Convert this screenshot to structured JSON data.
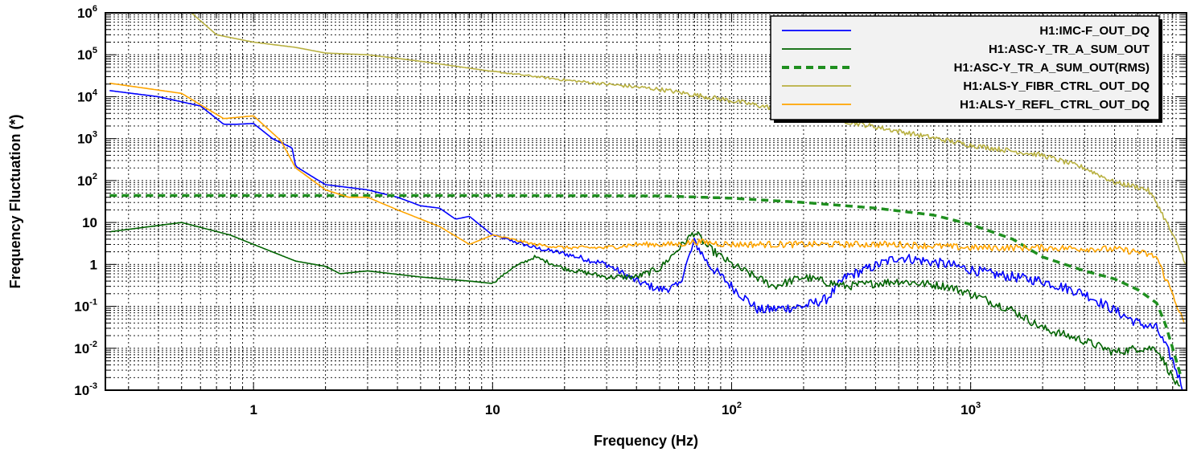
{
  "chart_data": {
    "type": "line",
    "xlabel": "Frequency (Hz)",
    "ylabel": "Frequency Fluctuation (*)",
    "xscale": "log",
    "yscale": "log",
    "xlim": [
      0.24,
      8000
    ],
    "ylim": [
      0.001,
      1000000
    ],
    "grid": true,
    "legend_position": "top-right",
    "x_ticks": [
      {
        "label": "1",
        "value": 1
      },
      {
        "label": "10",
        "value": 10
      },
      {
        "label": "10",
        "sup": "2",
        "value": 100
      },
      {
        "label": "10",
        "sup": "3",
        "value": 1000
      }
    ],
    "y_ticks": [
      {
        "label": "10",
        "sup": "-3",
        "value": 0.001
      },
      {
        "label": "10",
        "sup": "-2",
        "value": 0.01
      },
      {
        "label": "10",
        "sup": "-1",
        "value": 0.1
      },
      {
        "label": "1",
        "sup": "",
        "value": 1
      },
      {
        "label": "10",
        "sup": "",
        "value": 10
      },
      {
        "label": "10",
        "sup": "2",
        "value": 100
      },
      {
        "label": "10",
        "sup": "3",
        "value": 1000
      },
      {
        "label": "10",
        "sup": "4",
        "value": 10000
      },
      {
        "label": "10",
        "sup": "5",
        "value": 100000
      },
      {
        "label": "10",
        "sup": "6",
        "value": 1000000
      }
    ],
    "series": [
      {
        "name": "H1:IMC-F_OUT_DQ",
        "color": "#0000ff",
        "dash": "solid",
        "noise": 0.12,
        "points": [
          [
            0.25,
            14000
          ],
          [
            0.4,
            10000
          ],
          [
            0.6,
            6000
          ],
          [
            0.75,
            2200
          ],
          [
            0.85,
            2200
          ],
          [
            1.0,
            2300
          ],
          [
            1.2,
            1000
          ],
          [
            1.45,
            600
          ],
          [
            1.5,
            220
          ],
          [
            1.7,
            140
          ],
          [
            2.0,
            80
          ],
          [
            3.0,
            60
          ],
          [
            4.0,
            40
          ],
          [
            5.0,
            25
          ],
          [
            6.0,
            22
          ],
          [
            7.0,
            12
          ],
          [
            8.0,
            14
          ],
          [
            10.0,
            5
          ],
          [
            15.0,
            2.5
          ],
          [
            20.0,
            1.8
          ],
          [
            30.0,
            1.0
          ],
          [
            40.0,
            0.4
          ],
          [
            50.0,
            0.25
          ],
          [
            60.0,
            0.3
          ],
          [
            70.0,
            3.5
          ],
          [
            80.0,
            1.0
          ],
          [
            100.0,
            0.3
          ],
          [
            130.0,
            0.08
          ],
          [
            200.0,
            0.1
          ],
          [
            250.0,
            0.15
          ],
          [
            300.0,
            0.5
          ],
          [
            500.0,
            1.5
          ],
          [
            800.0,
            1.0
          ],
          [
            1200.0,
            0.6
          ],
          [
            2000.0,
            0.4
          ],
          [
            3000.0,
            0.2
          ],
          [
            4000.0,
            0.08
          ],
          [
            5000.0,
            0.04
          ],
          [
            6000.0,
            0.03
          ],
          [
            7000.0,
            0.005
          ],
          [
            7800.0,
            0.001
          ]
        ]
      },
      {
        "name": "H1:ASC-Y_TR_A_SUM_OUT",
        "color": "#006400",
        "dash": "solid",
        "noise": 0.1,
        "points": [
          [
            0.25,
            6
          ],
          [
            0.5,
            10
          ],
          [
            0.8,
            5
          ],
          [
            1.0,
            3
          ],
          [
            1.5,
            1.2
          ],
          [
            2.0,
            0.9
          ],
          [
            2.3,
            0.6
          ],
          [
            3.0,
            0.7
          ],
          [
            5.0,
            0.5
          ],
          [
            8.0,
            0.4
          ],
          [
            10.0,
            0.35
          ],
          [
            12.0,
            0.8
          ],
          [
            15.0,
            1.5
          ],
          [
            20.0,
            0.8
          ],
          [
            30.0,
            0.5
          ],
          [
            40.0,
            0.5
          ],
          [
            50.0,
            0.8
          ],
          [
            70.0,
            6
          ],
          [
            80.0,
            2.5
          ],
          [
            100.0,
            1
          ],
          [
            150.0,
            0.3
          ],
          [
            200.0,
            0.5
          ],
          [
            300.0,
            0.3
          ],
          [
            500.0,
            0.4
          ],
          [
            800.0,
            0.3
          ],
          [
            1000.0,
            0.2
          ],
          [
            1500.0,
            0.08
          ],
          [
            2000.0,
            0.03
          ],
          [
            3000.0,
            0.015
          ],
          [
            4000.0,
            0.008
          ],
          [
            5000.0,
            0.01
          ],
          [
            6000.0,
            0.01
          ],
          [
            7000.0,
            0.002
          ],
          [
            7500.0,
            0.001
          ]
        ]
      },
      {
        "name": "H1:ASC-Y_TR_A_SUM_OUT(RMS)",
        "color": "#1f8f1f",
        "dash": "dashed",
        "noise": 0,
        "points": [
          [
            0.25,
            44
          ],
          [
            10.0,
            44
          ],
          [
            50.0,
            43
          ],
          [
            100.0,
            38
          ],
          [
            200.0,
            30
          ],
          [
            400.0,
            22
          ],
          [
            700.0,
            15
          ],
          [
            1000.0,
            9
          ],
          [
            1500.0,
            4
          ],
          [
            2000.0,
            1.5
          ],
          [
            3000.0,
            0.7
          ],
          [
            4000.0,
            0.45
          ],
          [
            5000.0,
            0.25
          ],
          [
            6000.0,
            0.12
          ],
          [
            6500.0,
            0.04
          ],
          [
            7000.0,
            0.01
          ],
          [
            7600.0,
            0.002
          ]
        ]
      },
      {
        "name": "H1:ALS-Y_FIBR_CTRL_OUT_DQ",
        "color": "#b8b040",
        "dash": "solid",
        "noise": 0.06,
        "points": [
          [
            0.55,
            1000000
          ],
          [
            0.7,
            300000
          ],
          [
            1.0,
            200000
          ],
          [
            1.5,
            150000
          ],
          [
            2.0,
            110000
          ],
          [
            3.0,
            100000
          ],
          [
            5.0,
            70000
          ],
          [
            10.0,
            40000
          ],
          [
            20.0,
            25000
          ],
          [
            50.0,
            15000
          ],
          [
            100.0,
            8000
          ],
          [
            200.0,
            4000
          ],
          [
            500.0,
            1500
          ],
          [
            1000.0,
            700
          ],
          [
            2000.0,
            400
          ],
          [
            3000.0,
            200
          ],
          [
            4000.0,
            90
          ],
          [
            5000.0,
            70
          ],
          [
            5500.0,
            60
          ],
          [
            6000.0,
            30
          ],
          [
            7000.0,
            5
          ],
          [
            8000.0,
            1
          ]
        ]
      },
      {
        "name": "H1:ALS-Y_REFL_CTRL_OUT_DQ",
        "color": "#ffa500",
        "dash": "solid",
        "noise": 0.08,
        "points": [
          [
            0.25,
            21000
          ],
          [
            0.5,
            12000
          ],
          [
            0.75,
            3000
          ],
          [
            1.0,
            3500
          ],
          [
            1.3,
            900
          ],
          [
            1.5,
            200
          ],
          [
            2.0,
            60
          ],
          [
            2.5,
            40
          ],
          [
            3.0,
            40
          ],
          [
            4.0,
            20
          ],
          [
            6.0,
            8
          ],
          [
            8.0,
            3
          ],
          [
            10.0,
            5
          ],
          [
            12.0,
            4
          ],
          [
            15.0,
            3
          ],
          [
            20.0,
            2.5
          ],
          [
            30.0,
            2.5
          ],
          [
            40.0,
            3
          ],
          [
            60.0,
            3
          ],
          [
            70.0,
            3.5
          ],
          [
            100.0,
            3
          ],
          [
            200.0,
            3
          ],
          [
            500.0,
            3
          ],
          [
            1000.0,
            2.5
          ],
          [
            2000.0,
            2.5
          ],
          [
            4000.0,
            2.3
          ],
          [
            5000.0,
            2.0
          ],
          [
            6000.0,
            1.5
          ],
          [
            6500.0,
            0.5
          ],
          [
            7000.0,
            0.2
          ],
          [
            7800.0,
            0.04
          ]
        ]
      }
    ]
  }
}
